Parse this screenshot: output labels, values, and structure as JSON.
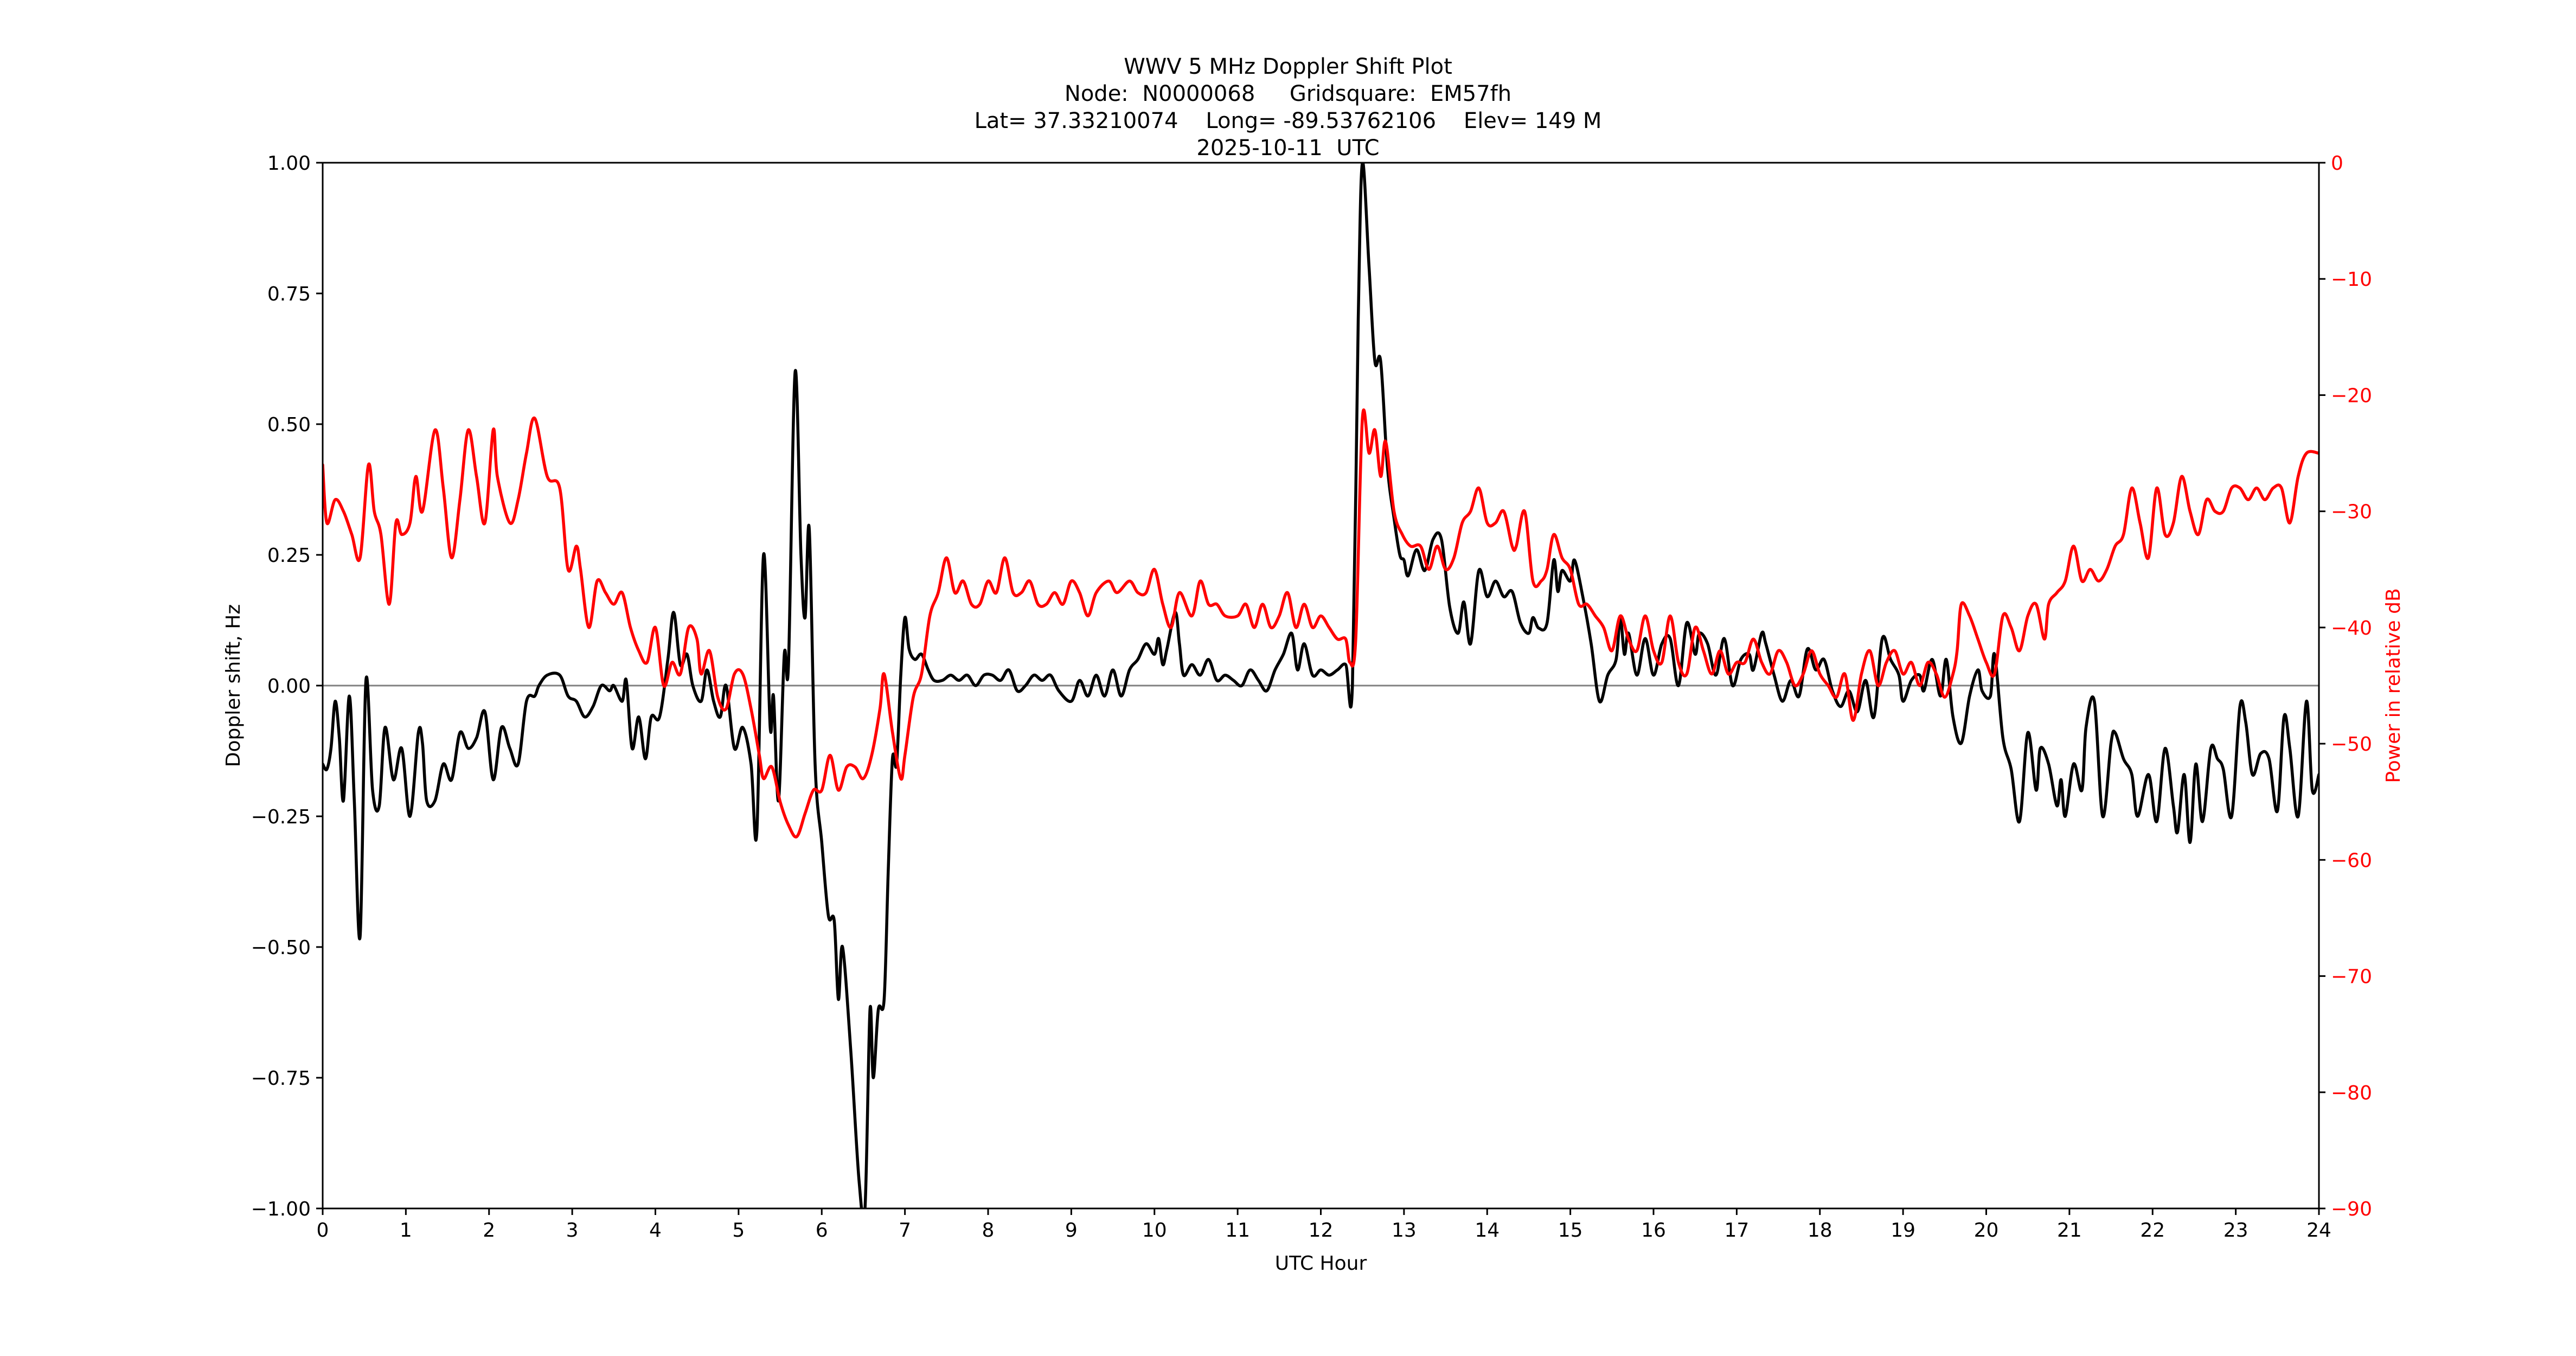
{
  "title": {
    "line1": "WWV 5 MHz Doppler Shift Plot",
    "line2": "Node:  N0000068     Gridsquare:  EM57fh",
    "line3": "Lat= 37.33210074    Long= -89.53762106    Elev= 149 M",
    "line4": "2025-10-11  UTC"
  },
  "colors": {
    "doppler": "#000000",
    "power": "#ff0000",
    "zero_line": "#808080",
    "axis": "#000000",
    "right_axis_text": "#ff0000"
  },
  "chart_data": {
    "type": "line",
    "title": "WWV 5 MHz Doppler Shift Plot",
    "subtitle": [
      "Node:  N0000068     Gridsquare:  EM57fh",
      "Lat= 37.33210074    Long= -89.53762106    Elev= 149 M",
      "2025-10-11  UTC"
    ],
    "xlabel": "UTC Hour",
    "ylabel": "Doppler shift, Hz",
    "y2label": "Power in relative dB",
    "xlim": [
      0,
      24
    ],
    "ylim": [
      -1.0,
      1.0
    ],
    "y2lim": [
      -90,
      0
    ],
    "xticks": [
      "0",
      "1",
      "2",
      "3",
      "4",
      "5",
      "6",
      "7",
      "8",
      "9",
      "10",
      "11",
      "12",
      "13",
      "14",
      "15",
      "16",
      "17",
      "18",
      "19",
      "20",
      "21",
      "22",
      "23",
      "24"
    ],
    "yticks": [
      "1.00",
      "0.75",
      "0.50",
      "0.25",
      "0.00",
      "−0.25",
      "−0.50",
      "−0.75",
      "−1.00"
    ],
    "y2ticks": [
      "0",
      "−10",
      "−20",
      "−30",
      "−40",
      "−50",
      "−60",
      "−70",
      "−80",
      "−90"
    ],
    "grid": false,
    "legend": null,
    "reference_line": {
      "y": 0.0,
      "color": "#808080"
    },
    "series": [
      {
        "name": "Doppler shift (Hz)",
        "axis": "left",
        "color": "#000000",
        "x": [
          0,
          0.05,
          0.1,
          0.15,
          0.2,
          0.25,
          0.32,
          0.38,
          0.45,
          0.52,
          0.6,
          0.68,
          0.75,
          0.85,
          0.95,
          1.05,
          1.15,
          1.2,
          1.25,
          1.35,
          1.45,
          1.55,
          1.65,
          1.75,
          1.85,
          1.95,
          2.05,
          2.15,
          2.25,
          2.35,
          2.45,
          2.55,
          2.6,
          2.7,
          2.85,
          2.95,
          3.05,
          3.15,
          3.25,
          3.35,
          3.45,
          3.5,
          3.6,
          3.65,
          3.72,
          3.8,
          3.88,
          3.95,
          4.05,
          4.15,
          4.22,
          4.3,
          4.38,
          4.45,
          4.55,
          4.62,
          4.7,
          4.78,
          4.85,
          4.95,
          5.05,
          5.15,
          5.22,
          5.3,
          5.38,
          5.42,
          5.48,
          5.55,
          5.6,
          5.68,
          5.75,
          5.8,
          5.85,
          5.92,
          6.0,
          6.08,
          6.15,
          6.2,
          6.25,
          6.35,
          6.45,
          6.52,
          6.58,
          6.62,
          6.68,
          6.75,
          6.8,
          6.85,
          6.9,
          6.95,
          7.0,
          7.05,
          7.12,
          7.2,
          7.28,
          7.35,
          7.45,
          7.55,
          7.65,
          7.75,
          7.85,
          7.95,
          8.05,
          8.15,
          8.25,
          8.35,
          8.45,
          8.55,
          8.65,
          8.75,
          8.85,
          9.0,
          9.1,
          9.2,
          9.3,
          9.4,
          9.5,
          9.6,
          9.7,
          9.8,
          9.9,
          10.0,
          10.05,
          10.1,
          10.15,
          10.25,
          10.3,
          10.35,
          10.45,
          10.55,
          10.65,
          10.75,
          10.85,
          10.95,
          11.05,
          11.15,
          11.25,
          11.35,
          11.45,
          11.55,
          11.65,
          11.72,
          11.8,
          11.9,
          12.0,
          12.1,
          12.2,
          12.3,
          12.38,
          12.45,
          12.5,
          12.58,
          12.65,
          12.72,
          12.8,
          12.88,
          12.95,
          13.0,
          13.05,
          13.15,
          13.25,
          13.35,
          13.45,
          13.55,
          13.65,
          13.72,
          13.8,
          13.9,
          14.0,
          14.1,
          14.2,
          14.3,
          14.4,
          14.5,
          14.55,
          14.62,
          14.72,
          14.8,
          14.85,
          14.9,
          15.0,
          15.05,
          15.15,
          15.25,
          15.35,
          15.45,
          15.55,
          15.6,
          15.65,
          15.7,
          15.8,
          15.9,
          16.0,
          16.1,
          16.2,
          16.3,
          16.4,
          16.5,
          16.55,
          16.65,
          16.75,
          16.85,
          16.95,
          17.05,
          17.15,
          17.2,
          17.3,
          17.35,
          17.45,
          17.55,
          17.65,
          17.75,
          17.85,
          17.95,
          18.05,
          18.15,
          18.25,
          18.35,
          18.45,
          18.55,
          18.65,
          18.75,
          18.85,
          18.95,
          19.0,
          19.1,
          19.2,
          19.25,
          19.35,
          19.45,
          19.52,
          19.6,
          19.7,
          19.8,
          19.9,
          19.95,
          20.05,
          20.1,
          20.2,
          20.3,
          20.4,
          20.5,
          20.6,
          20.65,
          20.75,
          20.85,
          20.9,
          20.95,
          21.05,
          21.15,
          21.2,
          21.3,
          21.4,
          21.5,
          21.55,
          21.65,
          21.75,
          21.82,
          21.95,
          22.05,
          22.15,
          22.25,
          22.3,
          22.38,
          22.45,
          22.52,
          22.6,
          22.7,
          22.78,
          22.85,
          22.95,
          23.05,
          23.12,
          23.2,
          23.3,
          23.4,
          23.5,
          23.58,
          23.65,
          23.75,
          23.85,
          23.92,
          24.0
        ],
        "values": [
          -0.15,
          -0.16,
          -0.12,
          -0.03,
          -0.1,
          -0.22,
          -0.02,
          -0.22,
          -0.48,
          0.01,
          -0.2,
          -0.23,
          -0.08,
          -0.18,
          -0.12,
          -0.25,
          -0.09,
          -0.11,
          -0.22,
          -0.22,
          -0.15,
          -0.18,
          -0.09,
          -0.12,
          -0.1,
          -0.05,
          -0.18,
          -0.08,
          -0.12,
          -0.15,
          -0.03,
          -0.02,
          0.0,
          0.02,
          0.02,
          -0.02,
          -0.03,
          -0.06,
          -0.04,
          0.0,
          -0.01,
          0.0,
          -0.03,
          0.01,
          -0.12,
          -0.06,
          -0.14,
          -0.06,
          -0.06,
          0.05,
          0.14,
          0.04,
          0.06,
          0.0,
          -0.03,
          0.03,
          -0.03,
          -0.06,
          0.0,
          -0.12,
          -0.08,
          -0.15,
          -0.28,
          0.25,
          -0.08,
          -0.02,
          -0.22,
          0.06,
          0.04,
          0.6,
          0.25,
          0.13,
          0.3,
          -0.15,
          -0.3,
          -0.44,
          -0.45,
          -0.6,
          -0.5,
          -0.7,
          -0.95,
          -1.0,
          -0.62,
          -0.75,
          -0.62,
          -0.6,
          -0.35,
          -0.14,
          -0.15,
          0.02,
          0.13,
          0.07,
          0.05,
          0.06,
          0.03,
          0.01,
          0.01,
          0.02,
          0.01,
          0.02,
          0.0,
          0.02,
          0.02,
          0.01,
          0.03,
          -0.01,
          0.0,
          0.02,
          0.01,
          0.02,
          -0.01,
          -0.03,
          0.01,
          -0.02,
          0.02,
          -0.02,
          0.03,
          -0.02,
          0.03,
          0.05,
          0.08,
          0.06,
          0.09,
          0.04,
          0.07,
          0.14,
          0.08,
          0.02,
          0.04,
          0.02,
          0.05,
          0.01,
          0.02,
          0.01,
          0.0,
          0.03,
          0.01,
          -0.01,
          0.03,
          0.06,
          0.1,
          0.03,
          0.08,
          0.02,
          0.03,
          0.02,
          0.03,
          0.04,
          0.0,
          0.7,
          1.0,
          0.8,
          0.62,
          0.62,
          0.42,
          0.32,
          0.25,
          0.24,
          0.21,
          0.26,
          0.22,
          0.28,
          0.28,
          0.15,
          0.1,
          0.16,
          0.08,
          0.22,
          0.17,
          0.2,
          0.17,
          0.18,
          0.12,
          0.1,
          0.13,
          0.11,
          0.12,
          0.24,
          0.18,
          0.22,
          0.2,
          0.24,
          0.17,
          0.08,
          -0.03,
          0.02,
          0.05,
          0.13,
          0.06,
          0.1,
          0.02,
          0.09,
          0.02,
          0.08,
          0.09,
          0.0,
          0.12,
          0.06,
          0.1,
          0.08,
          0.02,
          0.09,
          0.0,
          0.05,
          0.06,
          0.03,
          0.1,
          0.08,
          0.02,
          -0.03,
          0.01,
          -0.02,
          0.07,
          0.03,
          0.05,
          -0.01,
          -0.04,
          -0.01,
          -0.05,
          0.01,
          -0.06,
          0.09,
          0.05,
          0.02,
          -0.03,
          0.01,
          0.02,
          -0.01,
          0.05,
          -0.02,
          0.05,
          -0.06,
          -0.11,
          -0.02,
          0.03,
          -0.01,
          -0.02,
          0.06,
          -0.1,
          -0.16,
          -0.26,
          -0.09,
          -0.2,
          -0.12,
          -0.15,
          -0.23,
          -0.18,
          -0.25,
          -0.15,
          -0.2,
          -0.08,
          -0.03,
          -0.25,
          -0.11,
          -0.09,
          -0.14,
          -0.17,
          -0.25,
          -0.17,
          -0.26,
          -0.12,
          -0.23,
          -0.28,
          -0.17,
          -0.3,
          -0.15,
          -0.26,
          -0.12,
          -0.14,
          -0.16,
          -0.25,
          -0.04,
          -0.07,
          -0.17,
          -0.13,
          -0.14,
          -0.24,
          -0.06,
          -0.12,
          -0.25,
          -0.03,
          -0.2,
          -0.17
        ]
      },
      {
        "name": "Power (relative dB)",
        "axis": "right",
        "color": "#ff0000",
        "x": [
          0,
          0.05,
          0.15,
          0.25,
          0.35,
          0.45,
          0.55,
          0.62,
          0.7,
          0.8,
          0.88,
          0.95,
          1.05,
          1.12,
          1.2,
          1.35,
          1.45,
          1.55,
          1.65,
          1.75,
          1.85,
          1.95,
          2.05,
          2.1,
          2.25,
          2.35,
          2.45,
          2.55,
          2.7,
          2.85,
          2.95,
          3.05,
          3.1,
          3.2,
          3.3,
          3.4,
          3.5,
          3.6,
          3.7,
          3.8,
          3.9,
          4.0,
          4.1,
          4.2,
          4.3,
          4.4,
          4.5,
          4.55,
          4.65,
          4.75,
          4.85,
          4.95,
          5.05,
          5.15,
          5.25,
          5.3,
          5.4,
          5.5,
          5.6,
          5.7,
          5.8,
          5.9,
          6.0,
          6.1,
          6.2,
          6.3,
          6.4,
          6.5,
          6.6,
          6.7,
          6.75,
          6.85,
          6.95,
          7.0,
          7.1,
          7.2,
          7.3,
          7.4,
          7.5,
          7.6,
          7.7,
          7.8,
          7.9,
          8.0,
          8.1,
          8.2,
          8.3,
          8.4,
          8.5,
          8.6,
          8.7,
          8.8,
          8.9,
          9.0,
          9.1,
          9.2,
          9.3,
          9.45,
          9.55,
          9.7,
          9.8,
          9.9,
          10.0,
          10.1,
          10.2,
          10.3,
          10.45,
          10.55,
          10.65,
          10.75,
          10.85,
          11.0,
          11.1,
          11.2,
          11.3,
          11.4,
          11.5,
          11.6,
          11.7,
          11.8,
          11.9,
          12.0,
          12.1,
          12.2,
          12.3,
          12.35,
          12.42,
          12.5,
          12.58,
          12.65,
          12.72,
          12.78,
          12.88,
          12.98,
          13.08,
          13.2,
          13.3,
          13.4,
          13.5,
          13.6,
          13.7,
          13.8,
          13.9,
          14.0,
          14.1,
          14.2,
          14.3,
          14.35,
          14.45,
          14.55,
          14.65,
          14.72,
          14.8,
          14.9,
          15.0,
          15.1,
          15.2,
          15.3,
          15.4,
          15.5,
          15.6,
          15.7,
          15.8,
          15.9,
          16.0,
          16.1,
          16.2,
          16.3,
          16.4,
          16.5,
          16.6,
          16.7,
          16.8,
          16.9,
          17.0,
          17.1,
          17.2,
          17.3,
          17.4,
          17.5,
          17.6,
          17.7,
          17.8,
          17.9,
          18.0,
          18.1,
          18.2,
          18.3,
          18.4,
          18.5,
          18.6,
          18.7,
          18.8,
          18.9,
          19.0,
          19.1,
          19.2,
          19.3,
          19.4,
          19.5,
          19.6,
          19.65,
          19.7,
          19.8,
          19.9,
          20.0,
          20.1,
          20.2,
          20.3,
          20.4,
          20.5,
          20.6,
          20.7,
          20.75,
          20.85,
          20.95,
          21.05,
          21.15,
          21.25,
          21.35,
          21.45,
          21.55,
          21.65,
          21.75,
          21.85,
          21.95,
          22.05,
          22.15,
          22.25,
          22.35,
          22.45,
          22.55,
          22.65,
          22.75,
          22.85,
          22.95,
          23.05,
          23.15,
          23.25,
          23.35,
          23.45,
          23.55,
          23.65,
          23.75,
          23.85,
          24.0
        ],
        "values": [
          -26,
          -31,
          -29,
          -30,
          -32,
          -34,
          -26,
          -30,
          -32,
          -38,
          -31,
          -32,
          -31,
          -27,
          -30,
          -23,
          -28,
          -34,
          -29,
          -23,
          -27,
          -31,
          -23,
          -27,
          -31,
          -29,
          -25,
          -22,
          -27,
          -28,
          -35,
          -33,
          -35,
          -40,
          -36,
          -37,
          -38,
          -37,
          -40,
          -42,
          -43,
          -40,
          -45,
          -43,
          -44,
          -40,
          -41,
          -44,
          -42,
          -46,
          -47,
          -44,
          -44,
          -47,
          -51,
          -53,
          -52,
          -55,
          -57,
          -58,
          -56,
          -54,
          -54,
          -51,
          -54,
          -52,
          -52,
          -53,
          -51,
          -47,
          -44,
          -49,
          -53,
          -51,
          -46,
          -44,
          -39,
          -37,
          -34,
          -37,
          -36,
          -38,
          -38,
          -36,
          -37,
          -34,
          -37,
          -37,
          -36,
          -38,
          -38,
          -37,
          -38,
          -36,
          -37,
          -39,
          -37,
          -36,
          -37,
          -36,
          -37,
          -37,
          -35,
          -38,
          -40,
          -37,
          -39,
          -36,
          -38,
          -38,
          -39,
          -39,
          -38,
          -40,
          -38,
          -40,
          -39,
          -37,
          -40,
          -38,
          -40,
          -39,
          -40,
          -41,
          -41,
          -43,
          -41,
          -22,
          -25,
          -23,
          -27,
          -24,
          -30,
          -32,
          -33,
          -33,
          -35,
          -33,
          -35,
          -34,
          -31,
          -30,
          -28,
          -31,
          -31,
          -30,
          -33,
          -33,
          -30,
          -36,
          -36,
          -35,
          -32,
          -34,
          -35,
          -38,
          -38,
          -39,
          -40,
          -42,
          -39,
          -41,
          -42,
          -39,
          -42,
          -43,
          -39,
          -43,
          -44,
          -40,
          -42,
          -44,
          -42,
          -44,
          -43,
          -43,
          -41,
          -43,
          -44,
          -42,
          -43,
          -45,
          -44,
          -42,
          -44,
          -45,
          -46,
          -44,
          -48,
          -44,
          -42,
          -45,
          -43,
          -42,
          -44,
          -43,
          -45,
          -43,
          -44,
          -46,
          -44,
          -42,
          -38,
          -39,
          -41,
          -43,
          -44,
          -39,
          -40,
          -42,
          -39,
          -38,
          -41,
          -38,
          -37,
          -36,
          -33,
          -36,
          -35,
          -36,
          -35,
          -33,
          -32,
          -28,
          -31,
          -34,
          -28,
          -32,
          -31,
          -27,
          -30,
          -32,
          -29,
          -30,
          -30,
          -28,
          -28,
          -29,
          -28,
          -29,
          -28,
          -28,
          -31,
          -27,
          -25,
          -25
        ]
      }
    ]
  }
}
